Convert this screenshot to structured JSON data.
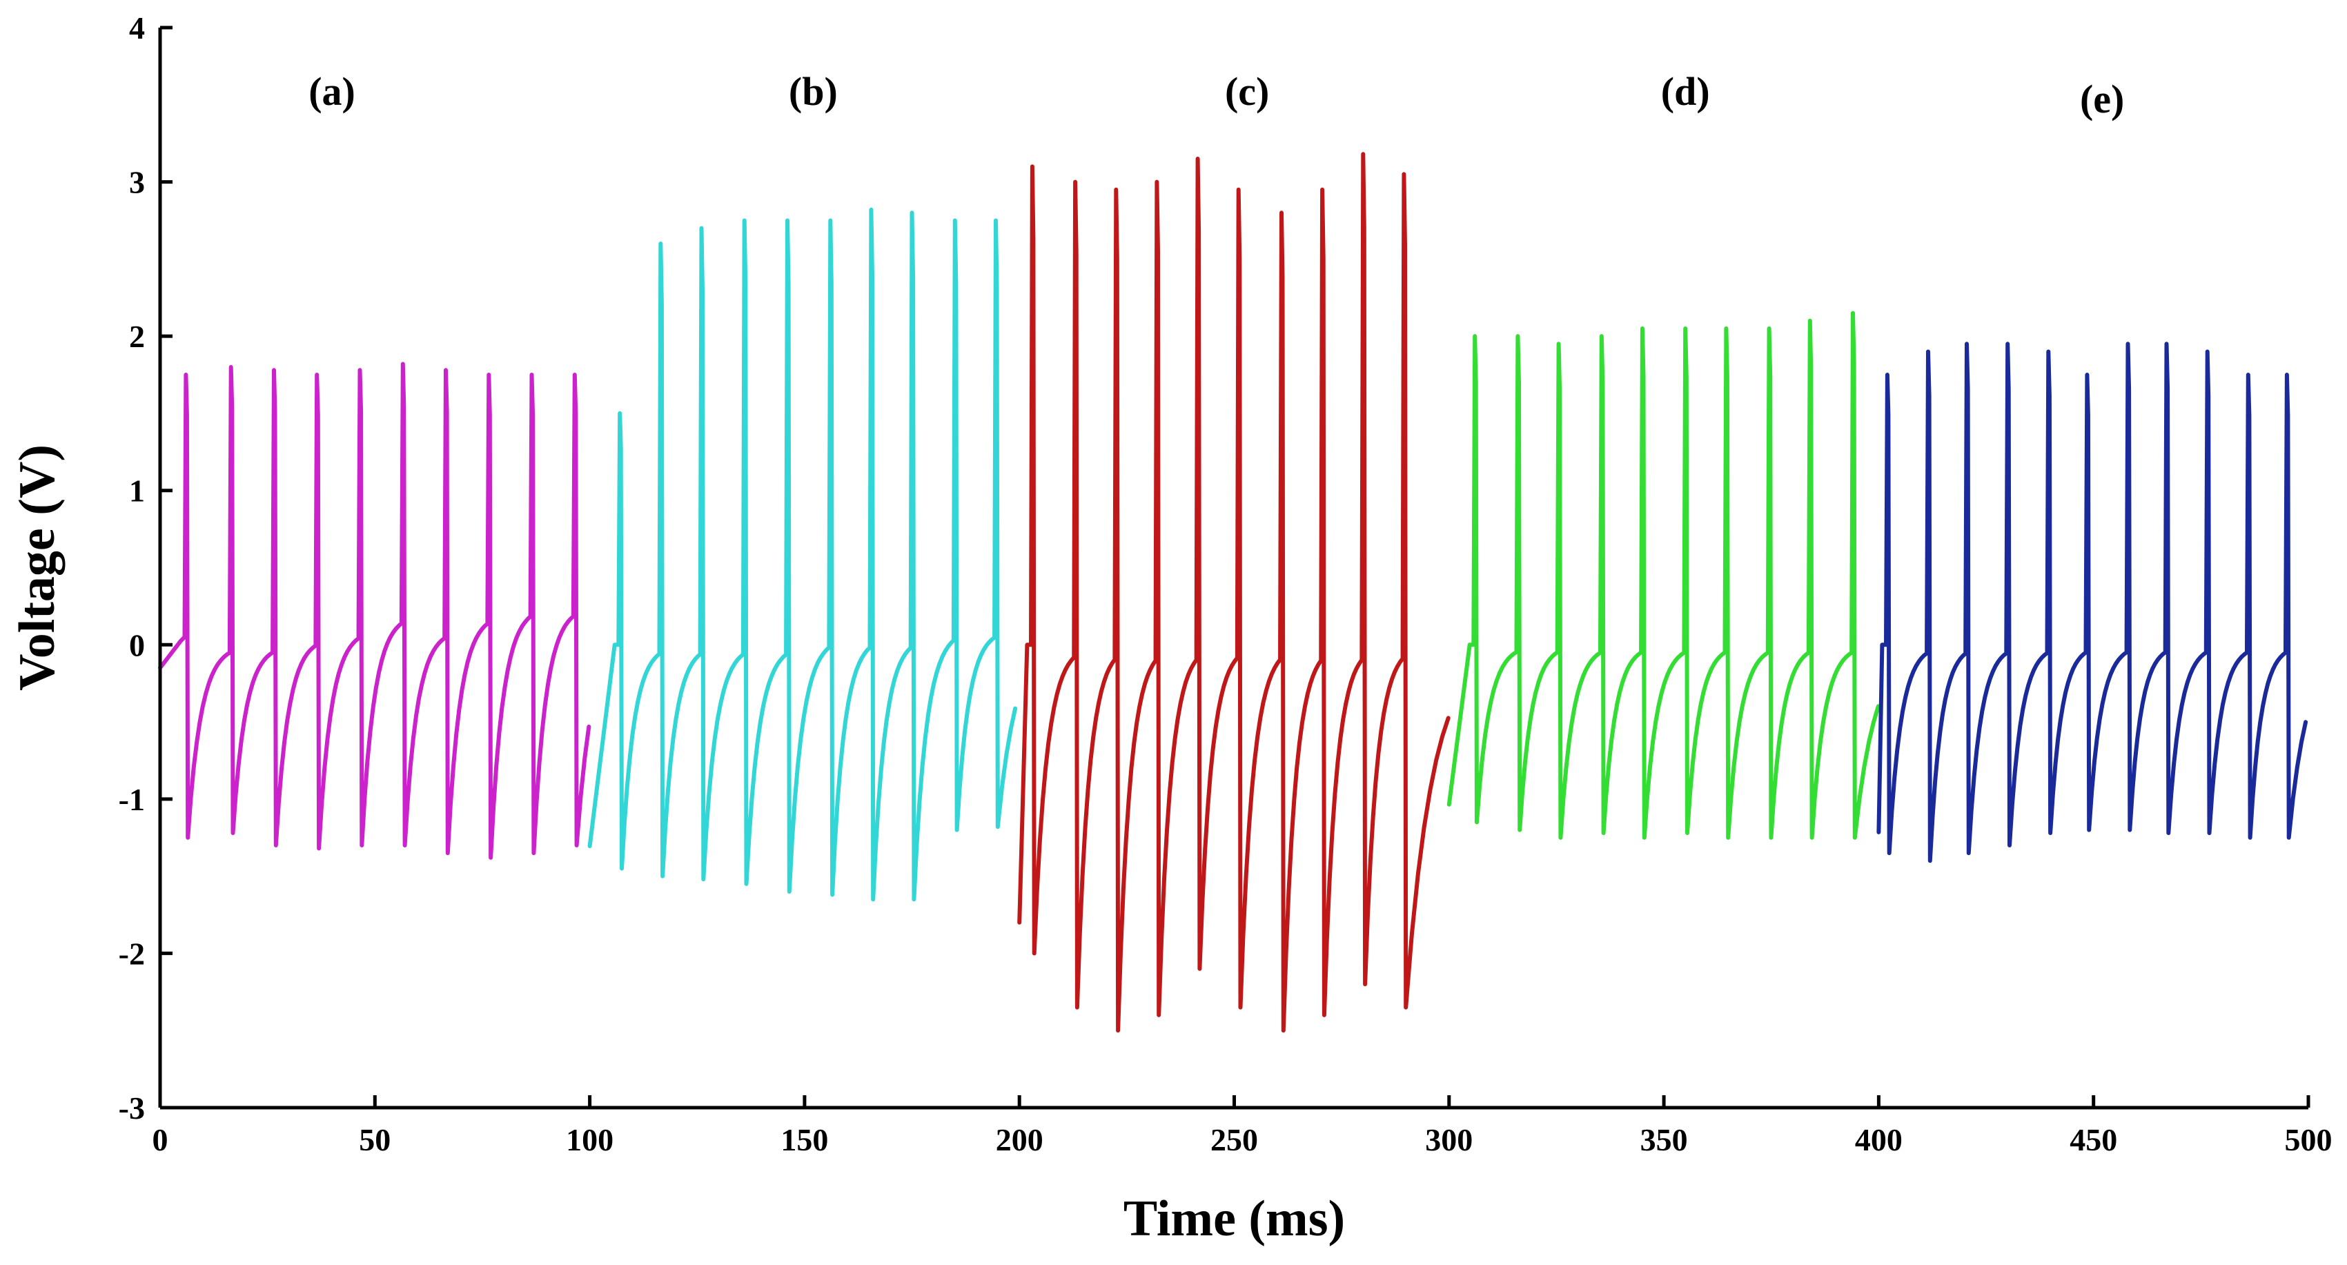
{
  "chart_data": {
    "type": "line",
    "title": "",
    "xlabel": "Time (ms)",
    "ylabel": "Voltage (V)",
    "xlim": [
      0,
      500
    ],
    "ylim": [
      -3,
      4
    ],
    "xticks": [
      "0",
      "50",
      "100",
      "150",
      "200",
      "250",
      "300",
      "350",
      "400",
      "450",
      "500"
    ],
    "yticks": [
      "-3",
      "-2",
      "-1",
      "0",
      "1",
      "2",
      "3",
      "4"
    ],
    "grid": false,
    "legend": "none",
    "series": [
      {
        "name": "(a)",
        "color": "#cc22cc",
        "x_start": 0,
        "x_end": 100,
        "spike_times": [
          6,
          16.5,
          26.5,
          36.5,
          46.5,
          56.5,
          66.5,
          76.5,
          86.5,
          96.5
        ],
        "peaks": [
          1.75,
          1.8,
          1.78,
          1.75,
          1.78,
          1.82,
          1.78,
          1.75,
          1.75,
          1.75
        ],
        "troughs": [
          -1.25,
          -1.22,
          -1.3,
          -1.32,
          -1.3,
          -1.3,
          -1.35,
          -1.38,
          -1.35,
          -1.3
        ],
        "plateau": [
          0.05,
          0.0,
          0.0,
          0.05,
          0.1,
          0.2,
          0.1,
          0.2,
          0.25,
          0.25
        ]
      },
      {
        "name": "(b)",
        "color": "#33d6d6",
        "x_start": 100,
        "x_end": 200,
        "spike_times": [
          107,
          116.5,
          126,
          136,
          146,
          156,
          165.5,
          175,
          185,
          194.5
        ],
        "peaks": [
          1.5,
          2.6,
          2.7,
          2.75,
          2.75,
          2.75,
          2.82,
          2.8,
          2.75,
          2.75
        ],
        "troughs": [
          -1.45,
          -1.5,
          -1.52,
          -1.55,
          -1.6,
          -1.62,
          -1.65,
          -1.65,
          -1.2,
          -1.18
        ],
        "plateau": [
          0.0,
          0.0,
          0.0,
          0.0,
          0.0,
          0.05,
          0.05,
          0.05,
          0.1,
          0.1
        ]
      },
      {
        "name": "(c)",
        "color": "#c01818",
        "x_start": 200,
        "x_end": 300,
        "spike_times": [
          203,
          213,
          222.5,
          232,
          241.5,
          251,
          261,
          270.5,
          280,
          289.5
        ],
        "peaks": [
          3.1,
          3.0,
          2.95,
          3.0,
          3.15,
          2.95,
          2.8,
          2.95,
          3.18,
          3.05
        ],
        "troughs": [
          -2.0,
          -2.35,
          -2.5,
          -2.4,
          -2.1,
          -2.35,
          -2.5,
          -2.4,
          -2.2,
          -2.35
        ],
        "plateau": [
          0.0,
          0.0,
          0.0,
          0.0,
          0.0,
          0.0,
          0.0,
          0.0,
          0.0,
          0.0
        ]
      },
      {
        "name": "(d)",
        "color": "#33dd33",
        "x_start": 300,
        "x_end": 400,
        "spike_times": [
          306,
          316,
          325.5,
          335.5,
          345,
          355,
          364.5,
          374.5,
          384,
          394
        ],
        "peaks": [
          2.0,
          2.0,
          1.95,
          2.0,
          2.05,
          2.05,
          2.05,
          2.05,
          2.1,
          2.15
        ],
        "troughs": [
          -1.15,
          -1.2,
          -1.25,
          -1.22,
          -1.25,
          -1.22,
          -1.25,
          -1.25,
          -1.25,
          -1.25
        ],
        "plateau": [
          0.0,
          0.0,
          0.0,
          0.0,
          0.0,
          0.0,
          0.0,
          0.0,
          0.0,
          0.0
        ]
      },
      {
        "name": "(e)",
        "color": "#1a2a9a",
        "x_start": 400,
        "x_end": 500,
        "spike_times": [
          402,
          411.5,
          420.5,
          430,
          439.5,
          448.5,
          458,
          467,
          476.5,
          486,
          495
        ],
        "peaks": [
          1.75,
          1.9,
          1.95,
          1.95,
          1.9,
          1.75,
          1.95,
          1.95,
          1.9,
          1.75,
          1.75
        ],
        "troughs": [
          -1.35,
          -1.4,
          -1.35,
          -1.3,
          -1.22,
          -1.2,
          -1.2,
          -1.22,
          -1.22,
          -1.25,
          -1.25
        ],
        "plateau": [
          0.0,
          0.0,
          0.0,
          0.0,
          0.0,
          0.0,
          0.0,
          0.0,
          0.0,
          0.0,
          0.0
        ]
      }
    ],
    "annotations": [
      {
        "text": "(a)",
        "x": 40,
        "y": 3.5
      },
      {
        "text": "(b)",
        "x": 152,
        "y": 3.5
      },
      {
        "text": "(c)",
        "x": 253,
        "y": 3.5
      },
      {
        "text": "(d)",
        "x": 355,
        "y": 3.5
      },
      {
        "text": "(e)",
        "x": 452,
        "y": 3.45
      }
    ]
  }
}
